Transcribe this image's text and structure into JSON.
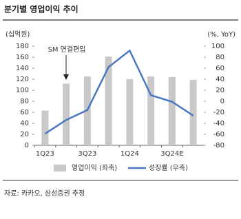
{
  "chart_data": {
    "type": "combo",
    "title": "분기별 영업이익 추이",
    "y_label": "(십억원)",
    "y2_label": "(%, YoY)",
    "annotation": "SM 연결편입",
    "categories": [
      "1Q23",
      null,
      "3Q23",
      null,
      "1Q24",
      null,
      "3Q24E",
      null
    ],
    "series": [
      {
        "name": "영업이익 (좌축)",
        "type": "bar",
        "color": "#c9c9c9",
        "values": [
          63,
          112,
          125,
          161,
          120,
          125,
          124,
          119
        ]
      },
      {
        "name": "성장률 (우축)",
        "type": "line",
        "axis": "y2",
        "color": "#4a76c4",
        "values": [
          -59,
          -34,
          -16,
          62,
          92,
          11,
          -1,
          -26
        ]
      }
    ],
    "ylim": [
      0,
      180
    ],
    "yticks": [
      0,
      20,
      40,
      60,
      80,
      100,
      120,
      140,
      160,
      180
    ],
    "y2lim": [
      -80,
      100
    ],
    "y2ticks": [
      -80,
      -60,
      -40,
      -20,
      0,
      20,
      40,
      60,
      80,
      100
    ],
    "source": "자료: 카카오, 삼성증권 추정"
  }
}
